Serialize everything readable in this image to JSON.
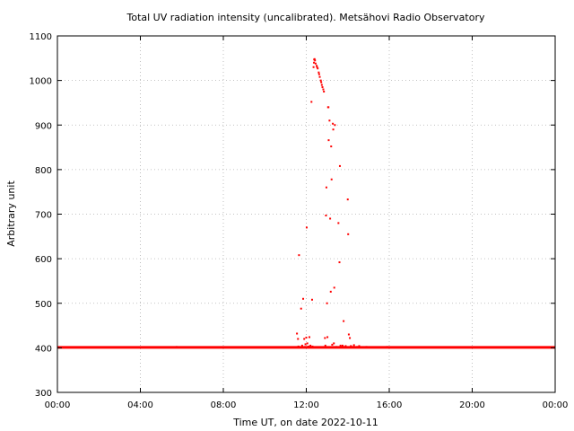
{
  "chart_data": {
    "type": "scatter",
    "title": "Total UV radiation intensity (uncalibrated). Metsähovi Radio Observatory",
    "xlabel": "Time UT, on date 2022-10-11",
    "ylabel": "Arbitrary unit",
    "xlim": [
      0,
      24
    ],
    "ylim": [
      300,
      1100
    ],
    "x_unit": "hours UT",
    "grid": true,
    "point_color": "#ff0000",
    "x_tick_values": [
      0,
      4,
      8,
      12,
      16,
      20,
      24
    ],
    "x_tick_labels": [
      "00:00",
      "04:00",
      "08:00",
      "12:00",
      "16:00",
      "20:00",
      "00:00"
    ],
    "y_ticks": [
      300,
      400,
      500,
      600,
      700,
      800,
      900,
      1000,
      1100
    ],
    "baseline": {
      "y": 401,
      "x_range": [
        0,
        24
      ]
    },
    "points": [
      [
        5.4,
        401
      ],
      [
        5.6,
        401
      ],
      [
        5.75,
        402
      ],
      [
        11.55,
        432
      ],
      [
        11.6,
        420
      ],
      [
        11.62,
        403
      ],
      [
        11.65,
        608
      ],
      [
        11.75,
        488
      ],
      [
        11.8,
        405
      ],
      [
        11.85,
        510
      ],
      [
        11.9,
        420
      ],
      [
        11.93,
        402
      ],
      [
        11.96,
        408
      ],
      [
        12.0,
        423
      ],
      [
        12.02,
        670
      ],
      [
        12.05,
        410
      ],
      [
        12.1,
        403
      ],
      [
        12.15,
        424
      ],
      [
        12.2,
        405
      ],
      [
        12.25,
        952
      ],
      [
        12.28,
        508
      ],
      [
        12.3,
        403
      ],
      [
        12.35,
        1030
      ],
      [
        12.37,
        1040
      ],
      [
        12.38,
        1047
      ],
      [
        12.4,
        1048
      ],
      [
        12.42,
        1045
      ],
      [
        12.45,
        1038
      ],
      [
        12.5,
        1033
      ],
      [
        12.52,
        1030
      ],
      [
        12.55,
        1027
      ],
      [
        12.6,
        1018
      ],
      [
        12.62,
        1014
      ],
      [
        12.65,
        1008
      ],
      [
        12.7,
        1000
      ],
      [
        12.72,
        996
      ],
      [
        12.75,
        990
      ],
      [
        12.78,
        985
      ],
      [
        12.82,
        980
      ],
      [
        12.85,
        975
      ],
      [
        12.9,
        422
      ],
      [
        12.92,
        405
      ],
      [
        12.95,
        697
      ],
      [
        12.97,
        760
      ],
      [
        13.0,
        500
      ],
      [
        13.02,
        424
      ],
      [
        13.05,
        940
      ],
      [
        13.07,
        940
      ],
      [
        13.08,
        866
      ],
      [
        13.12,
        910
      ],
      [
        13.15,
        690
      ],
      [
        13.18,
        526
      ],
      [
        13.2,
        852
      ],
      [
        13.22,
        778
      ],
      [
        13.25,
        407
      ],
      [
        13.28,
        903
      ],
      [
        13.3,
        890
      ],
      [
        13.33,
        410
      ],
      [
        13.35,
        535
      ],
      [
        13.38,
        900
      ],
      [
        13.45,
        402
      ],
      [
        13.55,
        680
      ],
      [
        13.6,
        592
      ],
      [
        13.62,
        808
      ],
      [
        13.65,
        405
      ],
      [
        13.7,
        402
      ],
      [
        13.75,
        405
      ],
      [
        13.8,
        460
      ],
      [
        13.85,
        402
      ],
      [
        13.9,
        404
      ],
      [
        14.0,
        733
      ],
      [
        14.02,
        655
      ],
      [
        14.05,
        430
      ],
      [
        14.1,
        422
      ],
      [
        14.15,
        404
      ],
      [
        14.2,
        402
      ],
      [
        14.3,
        406
      ],
      [
        14.45,
        402
      ],
      [
        14.55,
        404
      ],
      [
        14.7,
        401
      ],
      [
        14.9,
        402
      ],
      [
        15.9,
        402
      ],
      [
        16.0,
        401
      ]
    ]
  }
}
